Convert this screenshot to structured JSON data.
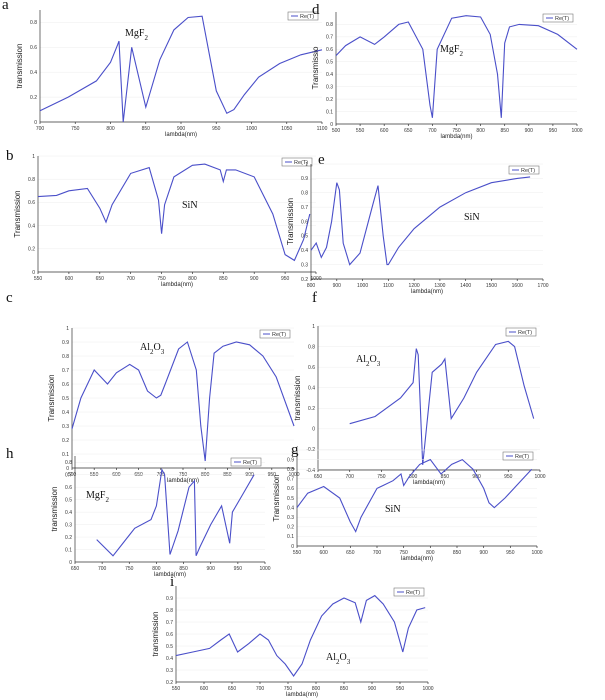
{
  "chart_data": [
    {
      "id": "a",
      "type": "line",
      "panel_label": "a",
      "material": "MgF",
      "material_sub": "2",
      "ylabel": "transmission",
      "xlabel": "lambda(nm)",
      "legend": "Re(T)",
      "xlim": [
        700,
        1100
      ],
      "ylim": [
        0,
        0.9
      ],
      "xticks": [
        "700",
        "750",
        "800",
        "850",
        "900",
        "950",
        "1000",
        "1050",
        "1100"
      ],
      "yticks": [
        "0",
        "0.2",
        "0.4",
        "0.6",
        "0.8"
      ],
      "x": [
        700,
        740,
        780,
        800,
        810,
        812,
        818,
        830,
        850,
        870,
        890,
        910,
        930,
        940,
        950,
        965,
        975,
        990,
        1010,
        1040,
        1070,
        1100
      ],
      "y": [
        0.09,
        0.2,
        0.33,
        0.48,
        0.62,
        0.65,
        0.0,
        0.6,
        0.12,
        0.5,
        0.74,
        0.84,
        0.85,
        0.55,
        0.25,
        0.07,
        0.1,
        0.22,
        0.36,
        0.47,
        0.54,
        0.58
      ]
    },
    {
      "id": "d",
      "type": "line",
      "panel_label": "d",
      "material": "MgF",
      "material_sub": "2",
      "ylabel": "Transmissio",
      "xlabel": "lambda(nm)",
      "legend": "Re(T)",
      "xlim": [
        500,
        1000
      ],
      "ylim": [
        0,
        0.9
      ],
      "xticks": [
        "500",
        "550",
        "600",
        "650",
        "700",
        "750",
        "800",
        "850",
        "900",
        "950",
        "1000"
      ],
      "yticks": [
        "0",
        "0.1",
        "0.2",
        "0.3",
        "0.4",
        "0.5",
        "0.6",
        "0.7",
        "0.8"
      ],
      "x": [
        500,
        520,
        550,
        580,
        600,
        630,
        650,
        680,
        695,
        700,
        710,
        740,
        770,
        800,
        820,
        835,
        843,
        850,
        860,
        880,
        920,
        960,
        1000
      ],
      "y": [
        0.55,
        0.63,
        0.7,
        0.64,
        0.7,
        0.8,
        0.82,
        0.6,
        0.15,
        0.05,
        0.6,
        0.85,
        0.87,
        0.86,
        0.72,
        0.4,
        0.05,
        0.65,
        0.78,
        0.8,
        0.79,
        0.72,
        0.6
      ]
    },
    {
      "id": "b",
      "type": "line",
      "panel_label": "b",
      "material": "SiN",
      "material_sub": "",
      "ylabel": "Transmission",
      "xlabel": "lambda(nm)",
      "legend": "Re(T)",
      "xlim": [
        550,
        1000
      ],
      "ylim": [
        0,
        1
      ],
      "xticks": [
        "550",
        "600",
        "650",
        "700",
        "750",
        "800",
        "850",
        "900",
        "950",
        "1000"
      ],
      "yticks": [
        "0",
        "0.2",
        "0.4",
        "0.6",
        "0.8",
        "1"
      ],
      "x": [
        550,
        580,
        600,
        630,
        650,
        660,
        670,
        700,
        730,
        745,
        750,
        755,
        770,
        800,
        820,
        845,
        850,
        855,
        870,
        900,
        930,
        950,
        965,
        980,
        990
      ],
      "y": [
        0.65,
        0.66,
        0.7,
        0.72,
        0.55,
        0.43,
        0.58,
        0.85,
        0.9,
        0.62,
        0.33,
        0.58,
        0.82,
        0.92,
        0.93,
        0.88,
        0.78,
        0.88,
        0.88,
        0.82,
        0.5,
        0.15,
        0.1,
        0.28,
        0.5
      ]
    },
    {
      "id": "e",
      "type": "line",
      "panel_label": "e",
      "material": "SiN",
      "material_sub": "",
      "ylabel": "Transmission",
      "xlabel": "lambda(nm)",
      "legend": "Re(T)",
      "xlim": [
        800,
        1700
      ],
      "ylim": [
        0.2,
        1
      ],
      "xticks": [
        "800",
        "900",
        "1000",
        "1100",
        "1200",
        "1300",
        "1400",
        "1500",
        "1600",
        "1700"
      ],
      "yticks": [
        "0.2",
        "0.3",
        "0.4",
        "0.5",
        "0.6",
        "0.7",
        "0.8",
        "0.9",
        "1"
      ],
      "x": [
        800,
        820,
        840,
        860,
        880,
        900,
        910,
        925,
        950,
        990,
        1040,
        1060,
        1080,
        1095,
        1100,
        1140,
        1200,
        1300,
        1400,
        1500,
        1600,
        1650
      ],
      "y": [
        0.4,
        0.45,
        0.35,
        0.42,
        0.6,
        0.87,
        0.82,
        0.45,
        0.3,
        0.38,
        0.72,
        0.85,
        0.5,
        0.3,
        0.3,
        0.42,
        0.55,
        0.7,
        0.8,
        0.87,
        0.9,
        0.91
      ]
    },
    {
      "id": "c",
      "type": "line",
      "panel_label": "c",
      "material": "Al",
      "material_sub": "2",
      "material_tail": "O",
      "material_sub2": "3",
      "ylabel": "Transmission",
      "xlabel": "lambda(nm)",
      "legend": "Re(T)",
      "xlim": [
        500,
        1000
      ],
      "ylim": [
        0,
        1
      ],
      "xticks": [
        "500",
        "550",
        "600",
        "650",
        "700",
        "750",
        "800",
        "850",
        "900",
        "950",
        "1000"
      ],
      "yticks": [
        "0",
        "0.1",
        "0.2",
        "0.3",
        "0.4",
        "0.5",
        "0.6",
        "0.7",
        "0.8",
        "0.9",
        "1"
      ],
      "x": [
        500,
        520,
        550,
        580,
        600,
        630,
        650,
        670,
        690,
        700,
        710,
        740,
        760,
        780,
        790,
        800,
        810,
        820,
        840,
        870,
        900,
        930,
        960,
        1000
      ],
      "y": [
        0.28,
        0.5,
        0.7,
        0.6,
        0.68,
        0.74,
        0.7,
        0.55,
        0.5,
        0.52,
        0.6,
        0.85,
        0.9,
        0.7,
        0.3,
        0.05,
        0.5,
        0.82,
        0.87,
        0.9,
        0.88,
        0.8,
        0.65,
        0.3
      ]
    },
    {
      "id": "f",
      "type": "line",
      "panel_label": "f",
      "material": "Al",
      "material_sub": "2",
      "material_tail": "O",
      "material_sub2": "3",
      "ylabel": "transmission",
      "xlabel": "lambda(nm)",
      "legend": "Re(T)",
      "xlim": [
        650,
        1000
      ],
      "ylim": [
        -0.4,
        1
      ],
      "xticks": [
        "650",
        "700",
        "750",
        "800",
        "850",
        "900",
        "950",
        "1000"
      ],
      "yticks": [
        "-0.4",
        "-0.2",
        "0",
        "0.2",
        "0.4",
        "0.6",
        "0.8",
        "1"
      ],
      "x": [
        700,
        740,
        780,
        800,
        805,
        808,
        815,
        830,
        845,
        850,
        860,
        880,
        900,
        930,
        950,
        960,
        975,
        990
      ],
      "y": [
        0.05,
        0.12,
        0.3,
        0.45,
        0.78,
        0.72,
        -0.35,
        0.55,
        0.63,
        0.68,
        0.1,
        0.3,
        0.55,
        0.82,
        0.85,
        0.8,
        0.42,
        0.1
      ]
    },
    {
      "id": "h",
      "type": "line",
      "panel_label": "h",
      "material": "MgF",
      "material_sub": "2",
      "ylabel": "transmission",
      "xlabel": "lambda(nm)",
      "legend": "Re(T)",
      "xlim": [
        650,
        1000
      ],
      "ylim": [
        0,
        0.85
      ],
      "xticks": [
        "650",
        "700",
        "750",
        "800",
        "850",
        "900",
        "950",
        "1000"
      ],
      "yticks": [
        "0",
        "0.1",
        "0.2",
        "0.3",
        "0.4",
        "0.5",
        "0.6",
        "0.7",
        "0.8"
      ],
      "x": [
        690,
        720,
        740,
        760,
        790,
        800,
        810,
        815,
        825,
        840,
        860,
        870,
        873,
        880,
        900,
        920,
        935,
        940,
        960,
        980
      ],
      "y": [
        0.18,
        0.05,
        0.16,
        0.27,
        0.34,
        0.45,
        0.74,
        0.7,
        0.06,
        0.25,
        0.6,
        0.65,
        0.05,
        0.12,
        0.3,
        0.45,
        0.15,
        0.4,
        0.55,
        0.7
      ]
    },
    {
      "id": "g",
      "type": "line",
      "panel_label": "g",
      "material": "SiN",
      "material_sub": "",
      "ylabel": "Transmission",
      "xlabel": "lambda(nm)",
      "legend": "Re(T)",
      "xlim": [
        550,
        1000
      ],
      "ylim": [
        0,
        1
      ],
      "xticks": [
        "550",
        "600",
        "650",
        "700",
        "750",
        "800",
        "850",
        "900",
        "950",
        "1000"
      ],
      "yticks": [
        "0",
        "0.1",
        "0.2",
        "0.3",
        "0.4",
        "0.5",
        "0.6",
        "0.7",
        "0.8",
        "0.9",
        "1"
      ],
      "x": [
        550,
        570,
        600,
        630,
        650,
        660,
        670,
        700,
        730,
        745,
        750,
        760,
        780,
        800,
        820,
        840,
        860,
        880,
        900,
        910,
        920,
        940,
        970,
        990
      ],
      "y": [
        0.4,
        0.55,
        0.62,
        0.5,
        0.25,
        0.15,
        0.3,
        0.6,
        0.68,
        0.75,
        0.63,
        0.72,
        0.85,
        0.9,
        0.75,
        0.85,
        0.9,
        0.8,
        0.6,
        0.45,
        0.4,
        0.5,
        0.68,
        0.8
      ]
    },
    {
      "id": "i",
      "type": "line",
      "panel_label": "i",
      "material": "Al",
      "material_sub": "2",
      "material_tail": "O",
      "material_sub2": "3",
      "ylabel": "transmission",
      "xlabel": "lambda(nm)",
      "legend": "Re(T)",
      "xlim": [
        550,
        1000
      ],
      "ylim": [
        0.2,
        1
      ],
      "xticks": [
        "550",
        "600",
        "650",
        "700",
        "750",
        "800",
        "850",
        "900",
        "950",
        "1000"
      ],
      "yticks": [
        "0.2",
        "0.3",
        "0.4",
        "0.5",
        "0.6",
        "0.7",
        "0.8",
        "0.9"
      ],
      "x": [
        550,
        580,
        610,
        630,
        645,
        660,
        680,
        700,
        715,
        730,
        745,
        760,
        775,
        790,
        810,
        830,
        850,
        870,
        880,
        890,
        905,
        920,
        940,
        955,
        965,
        980,
        995
      ],
      "y": [
        0.42,
        0.45,
        0.48,
        0.55,
        0.6,
        0.45,
        0.52,
        0.6,
        0.55,
        0.42,
        0.35,
        0.25,
        0.35,
        0.55,
        0.75,
        0.85,
        0.9,
        0.86,
        0.7,
        0.88,
        0.92,
        0.85,
        0.7,
        0.45,
        0.65,
        0.8,
        0.82
      ]
    }
  ]
}
